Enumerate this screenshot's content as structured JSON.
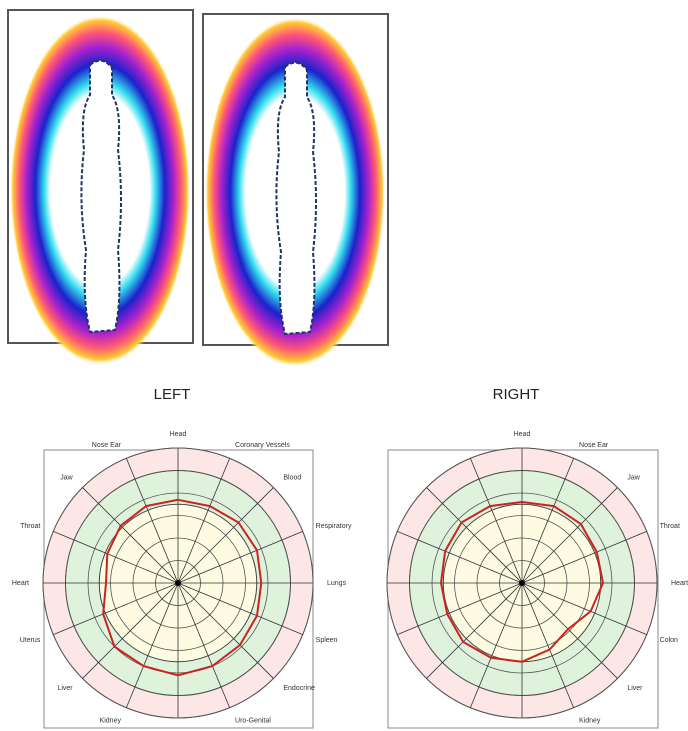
{
  "chart_data": [
    {
      "type": "radar",
      "title": "LEFT",
      "categories": [
        "Head",
        "Coronary Vessels",
        "Blood",
        "Respiratory",
        "Lungs",
        "Spleen",
        "Endocrine",
        "Uro-Genital",
        null,
        "Kidney",
        "Liver",
        "Uterus",
        "Heart",
        "Throat",
        "Jaw",
        "Nose Ear"
      ],
      "values": [
        3.7,
        3.7,
        3.8,
        3.8,
        3.7,
        3.8,
        3.9,
        4.0,
        4.1,
        4.0,
        4.0,
        3.6,
        3.2,
        3.4,
        3.6,
        3.7
      ],
      "color": "#cc2222",
      "rlim": [
        0,
        6
      ],
      "rticks": [
        1,
        2,
        3,
        4,
        5,
        6
      ],
      "norm_band": [
        3.5,
        5
      ]
    },
    {
      "type": "radar",
      "title": "RIGHT",
      "categories": [
        "Head",
        "Nose Ear",
        "Jaw",
        "Throat",
        "Heart",
        "Colon",
        "Liver",
        "Kidney",
        null,
        null,
        null,
        null,
        null,
        null,
        null,
        null
      ],
      "values": [
        3.6,
        3.7,
        3.7,
        3.6,
        3.6,
        3.3,
        2.9,
        3.2,
        3.5,
        3.6,
        3.7,
        3.6,
        3.6,
        3.7,
        3.8,
        3.7
      ],
      "color": "#cc2222",
      "rlim": [
        0,
        6
      ],
      "rticks": [
        1,
        2,
        3,
        4,
        5,
        6
      ],
      "norm_band": [
        3.5,
        5
      ]
    }
  ]
}
